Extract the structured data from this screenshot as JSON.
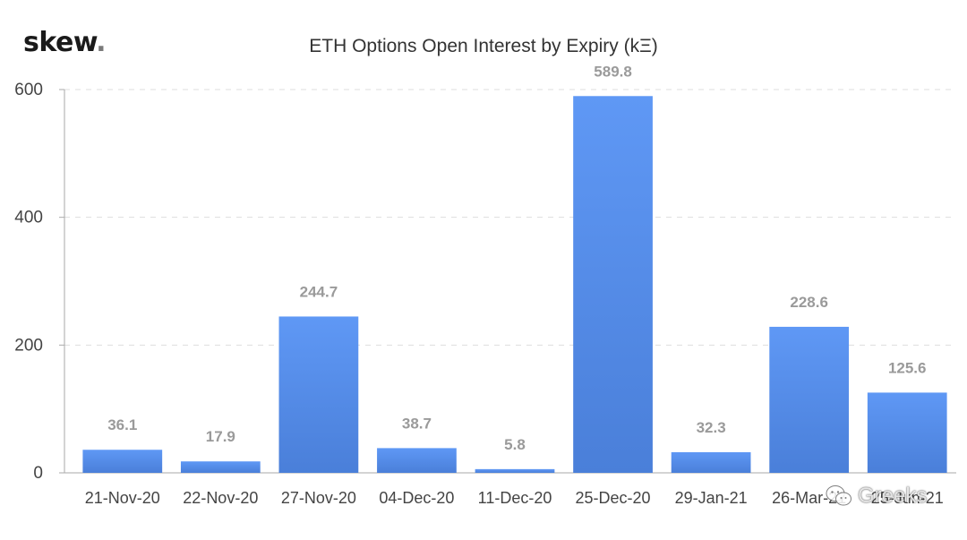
{
  "brand": {
    "name": "skew",
    "dot": "."
  },
  "watermark": {
    "text": "Greeks",
    "icon": "wechat-icon"
  },
  "chart_data": {
    "type": "bar",
    "title": "ETH Options Open Interest by Expiry (kΞ)",
    "xlabel": "",
    "ylabel": "",
    "categories": [
      "21-Nov-20",
      "22-Nov-20",
      "27-Nov-20",
      "04-Dec-20",
      "11-Dec-20",
      "25-Dec-20",
      "29-Jan-21",
      "26-Mar-21",
      "25-Jun-21"
    ],
    "values": [
      36.1,
      17.9,
      244.7,
      38.7,
      5.8,
      589.8,
      32.3,
      228.6,
      125.6
    ],
    "value_labels": [
      "36.1",
      "17.9",
      "244.7",
      "38.7",
      "5.8",
      "589.8",
      "32.3",
      "228.6",
      "125.6"
    ],
    "ylim": [
      0,
      600
    ],
    "yticks": [
      0,
      200,
      400,
      600
    ],
    "grid": true,
    "legend": "none",
    "colors": {
      "bar_top": "#5f98f5",
      "bar_bottom": "#4a7fd9",
      "grid": "#dddddd",
      "axis": "#aaaaaa"
    }
  }
}
